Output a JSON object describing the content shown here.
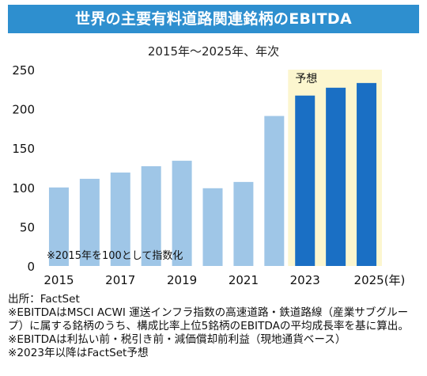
{
  "header": {
    "title": "世界の主要有料道路関連銘柄のEBITDA",
    "subtitle": "2015年～2025年、年次"
  },
  "colors": {
    "banner": "#2e8fcf",
    "actual_bar": "#9fc6e7",
    "forecast_bar": "#1a6fc4",
    "forecast_bg": "#fcf6cf"
  },
  "chart_data": {
    "type": "bar",
    "categories": [
      "2015",
      "2016",
      "2017",
      "2018",
      "2019",
      "2020",
      "2021",
      "2022",
      "2023",
      "2024",
      "2025"
    ],
    "values": [
      100,
      111,
      119,
      127,
      134,
      99,
      107,
      191,
      217,
      227,
      233
    ],
    "forecast_from": "2023",
    "forecast_label": "予想",
    "annotation": "※2015年を100として指数化",
    "ylim": [
      0,
      250
    ],
    "yticks": [
      0,
      50,
      100,
      150,
      200,
      250
    ],
    "xtick_labels": [
      "2015",
      "2017",
      "2019",
      "2021",
      "2023",
      "2025(年)"
    ],
    "grid": false
  },
  "notes": [
    "出所：FactSet",
    "※EBITDAはMSCI ACWI 運送インフラ指数の高速道路・鉄道路線（産業サブグループ）に属する銘柄のうち、構成比率上位5銘柄のEBITDAの平均成長率を基に算出。",
    "※EBITDAは利払い前・税引き前・減価償却前利益（現地通貨ベース）",
    "※2023年以降はFactSet予想"
  ]
}
